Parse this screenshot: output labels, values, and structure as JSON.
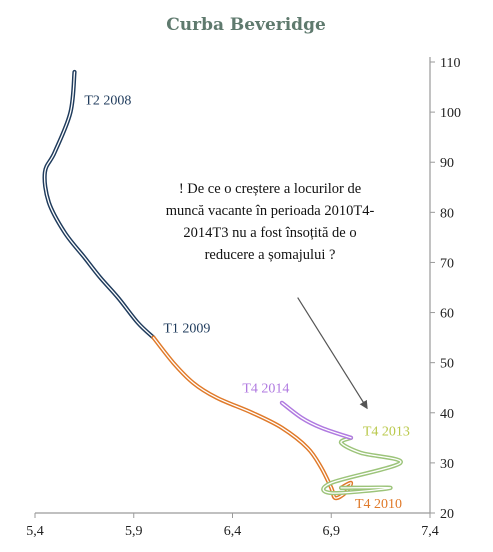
{
  "chart_data": {
    "type": "line",
    "title": "Curba Beveridge",
    "xlabel": "",
    "ylabel": "",
    "xlim": [
      5.4,
      7.4
    ],
    "ylim": [
      20,
      110
    ],
    "x_ticks": [
      "5,4",
      "5,9",
      "6,4",
      "6,9",
      "7,4"
    ],
    "y_ticks": [
      "20",
      "30",
      "40",
      "50",
      "60",
      "70",
      "80",
      "90",
      "100",
      "110"
    ],
    "y_axis_position": "right",
    "grid": false,
    "series": [
      {
        "name": "T2 2008 – T1 2009",
        "color": "#1f3b5c",
        "points": [
          [
            5.6,
            108
          ],
          [
            5.58,
            100
          ],
          [
            5.5,
            92
          ],
          [
            5.45,
            88
          ],
          [
            5.47,
            82
          ],
          [
            5.55,
            76
          ],
          [
            5.65,
            71
          ],
          [
            5.73,
            67
          ],
          [
            5.82,
            63
          ],
          [
            5.92,
            58
          ],
          [
            6.0,
            55
          ]
        ]
      },
      {
        "name": "T1 2009 – T4 2010",
        "color": "#e07a2a",
        "points": [
          [
            6.0,
            55
          ],
          [
            6.1,
            50
          ],
          [
            6.2,
            46
          ],
          [
            6.32,
            43
          ],
          [
            6.5,
            40
          ],
          [
            6.65,
            37
          ],
          [
            6.78,
            33
          ],
          [
            6.85,
            29
          ],
          [
            6.9,
            25
          ],
          [
            6.92,
            23
          ],
          [
            6.97,
            24
          ],
          [
            7.0,
            26
          ],
          [
            6.95,
            25
          ]
        ]
      },
      {
        "name": "T4 2010 – T4 2013",
        "color": "#9cc47a",
        "points": [
          [
            6.95,
            25
          ],
          [
            7.2,
            25
          ],
          [
            6.9,
            24
          ],
          [
            6.9,
            26
          ],
          [
            7.25,
            30
          ],
          [
            7.05,
            32
          ],
          [
            6.95,
            34
          ],
          [
            7.0,
            35
          ]
        ]
      },
      {
        "name": "T4 2013 – T4 2014",
        "color": "#b07ae0",
        "points": [
          [
            7.0,
            35
          ],
          [
            6.85,
            37
          ],
          [
            6.75,
            39
          ],
          [
            6.65,
            42
          ]
        ]
      }
    ],
    "point_labels": [
      {
        "text": "T2 2008",
        "x": 5.65,
        "y": 101.5,
        "color": "#1f3b5c"
      },
      {
        "text": "T1 2009",
        "x": 6.05,
        "y": 56,
        "color": "#1f3b5c"
      },
      {
        "text": "T4 2014",
        "x": 6.45,
        "y": 44,
        "color": "#b07ae0"
      },
      {
        "text": "T4 2013",
        "x": 7.06,
        "y": 35.5,
        "color": "#b9c84a"
      },
      {
        "text": "T4 2010",
        "x": 7.02,
        "y": 21,
        "color": "#e07a2a"
      }
    ],
    "annotation": {
      "lines": [
        "! De ce o creștere a locurilor de",
        "muncă vacante în perioada 2010T4-",
        "2014T3 nu a fost însoțită de o",
        "reducere a șomajului ?"
      ],
      "arrow_from": [
        6.73,
        63
      ],
      "arrow_to": [
        7.08,
        41
      ]
    }
  },
  "colors": {
    "axis": "#9a9a9a",
    "title": "#5f7a6e",
    "arrow": "#555555"
  }
}
